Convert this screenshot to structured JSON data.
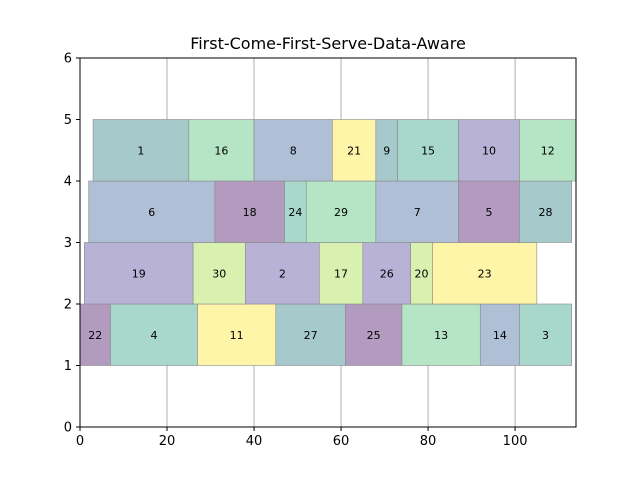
{
  "chart_data": {
    "type": "gantt",
    "title": "First-Come-First-Serve-Data-Aware",
    "xlabel": "",
    "ylabel": "",
    "xlim": [
      0,
      114
    ],
    "ylim": [
      0,
      6
    ],
    "xticks": [
      "0",
      "20",
      "40",
      "60",
      "80",
      "100"
    ],
    "yticks": [
      "0",
      "1",
      "2",
      "3",
      "4",
      "5",
      "6"
    ],
    "grid": "vertical",
    "bars": [
      {
        "label": "22",
        "x0": 0,
        "x1": 7,
        "row": 1,
        "color": "#b39bc0"
      },
      {
        "label": "4",
        "x0": 7,
        "x1": 27,
        "row": 1,
        "color": "#a8d8cc"
      },
      {
        "label": "11",
        "x0": 27,
        "x1": 45,
        "row": 1,
        "color": "#fff5a8"
      },
      {
        "label": "27",
        "x0": 45,
        "x1": 61,
        "row": 1,
        "color": "#a6c9cc"
      },
      {
        "label": "25",
        "x0": 61,
        "x1": 74,
        "row": 1,
        "color": "#b39bc0"
      },
      {
        "label": "13",
        "x0": 74,
        "x1": 92,
        "row": 1,
        "color": "#b5e5c5"
      },
      {
        "label": "14",
        "x0": 92,
        "x1": 101,
        "row": 1,
        "color": "#aebfd6"
      },
      {
        "label": "3",
        "x0": 101,
        "x1": 113,
        "row": 1,
        "color": "#a8d8cc"
      },
      {
        "label": "19",
        "x0": 1,
        "x1": 26,
        "row": 2,
        "color": "#b8b3d6"
      },
      {
        "label": "30",
        "x0": 26,
        "x1": 38,
        "row": 2,
        "color": "#d8f0b0"
      },
      {
        "label": "2",
        "x0": 38,
        "x1": 55,
        "row": 2,
        "color": "#b8b3d6"
      },
      {
        "label": "17",
        "x0": 55,
        "x1": 65,
        "row": 2,
        "color": "#d8f0b0"
      },
      {
        "label": "26",
        "x0": 65,
        "x1": 76,
        "row": 2,
        "color": "#b8b3d6"
      },
      {
        "label": "20",
        "x0": 76,
        "x1": 81,
        "row": 2,
        "color": "#d8f0b0"
      },
      {
        "label": "23",
        "x0": 81,
        "x1": 105,
        "row": 2,
        "color": "#fff5a8"
      },
      {
        "label": "6",
        "x0": 2,
        "x1": 31,
        "row": 3,
        "color": "#aebfd6"
      },
      {
        "label": "18",
        "x0": 31,
        "x1": 47,
        "row": 3,
        "color": "#b39bc0"
      },
      {
        "label": "24",
        "x0": 47,
        "x1": 52,
        "row": 3,
        "color": "#a8d8cc"
      },
      {
        "label": "29",
        "x0": 52,
        "x1": 68,
        "row": 3,
        "color": "#b5e5c5"
      },
      {
        "label": "7",
        "x0": 68,
        "x1": 87,
        "row": 3,
        "color": "#aebfd6"
      },
      {
        "label": "5",
        "x0": 87,
        "x1": 101,
        "row": 3,
        "color": "#b39bc0"
      },
      {
        "label": "28",
        "x0": 101,
        "x1": 113,
        "row": 3,
        "color": "#a6c9cc"
      },
      {
        "label": "1",
        "x0": 3,
        "x1": 25,
        "row": 4,
        "color": "#a6c9cc"
      },
      {
        "label": "16",
        "x0": 25,
        "x1": 40,
        "row": 4,
        "color": "#b5e5c5"
      },
      {
        "label": "8",
        "x0": 40,
        "x1": 58,
        "row": 4,
        "color": "#aebfd6"
      },
      {
        "label": "21",
        "x0": 58,
        "x1": 68,
        "row": 4,
        "color": "#fff5a8"
      },
      {
        "label": "9",
        "x0": 68,
        "x1": 73,
        "row": 4,
        "color": "#a6c9cc"
      },
      {
        "label": "15",
        "x0": 73,
        "x1": 87,
        "row": 4,
        "color": "#a8d8cc"
      },
      {
        "label": "10",
        "x0": 87,
        "x1": 101,
        "row": 4,
        "color": "#b8b3d6"
      },
      {
        "label": "12",
        "x0": 101,
        "x1": 114,
        "row": 4,
        "color": "#b5e5c5"
      }
    ]
  }
}
